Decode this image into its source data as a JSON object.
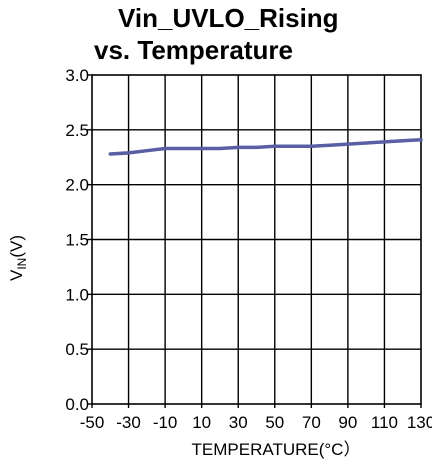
{
  "title_lines": [
    "Vin_UVLO_Rising",
    "vs. Temperature"
  ],
  "chart_data": {
    "type": "line",
    "title": "Vin_UVLO_Rising vs. Temperature",
    "xlabel": "TEMPERATURE(°C）",
    "ylabel": {
      "main": "V",
      "sub": "IN",
      "unit": "(V)"
    },
    "xlim": [
      -50,
      130
    ],
    "ylim": [
      0,
      3.0
    ],
    "x_ticks": [
      -50,
      -30,
      -10,
      10,
      30,
      50,
      70,
      90,
      110,
      130
    ],
    "x_tick_labels": [
      "-50",
      "-30",
      "-10",
      "10",
      "30",
      "50",
      "70",
      "90",
      "110",
      "130"
    ],
    "y_ticks": [
      0,
      0.5,
      1.0,
      1.5,
      2.0,
      2.5,
      3.0
    ],
    "y_tick_labels": [
      "0.0",
      "0.5",
      "1.0",
      "1.5",
      "2.0",
      "2.5",
      "3.0"
    ],
    "grid": true,
    "series": [
      {
        "color": "#5a5fa3",
        "x": [
          -40,
          -30,
          -20,
          -10,
          0,
          10,
          20,
          30,
          40,
          50,
          60,
          70,
          80,
          90,
          100,
          110,
          120,
          130
        ],
        "y": [
          2.28,
          2.29,
          2.31,
          2.33,
          2.33,
          2.33,
          2.33,
          2.34,
          2.34,
          2.35,
          2.35,
          2.35,
          2.36,
          2.37,
          2.38,
          2.39,
          2.4,
          2.41
        ]
      }
    ]
  }
}
